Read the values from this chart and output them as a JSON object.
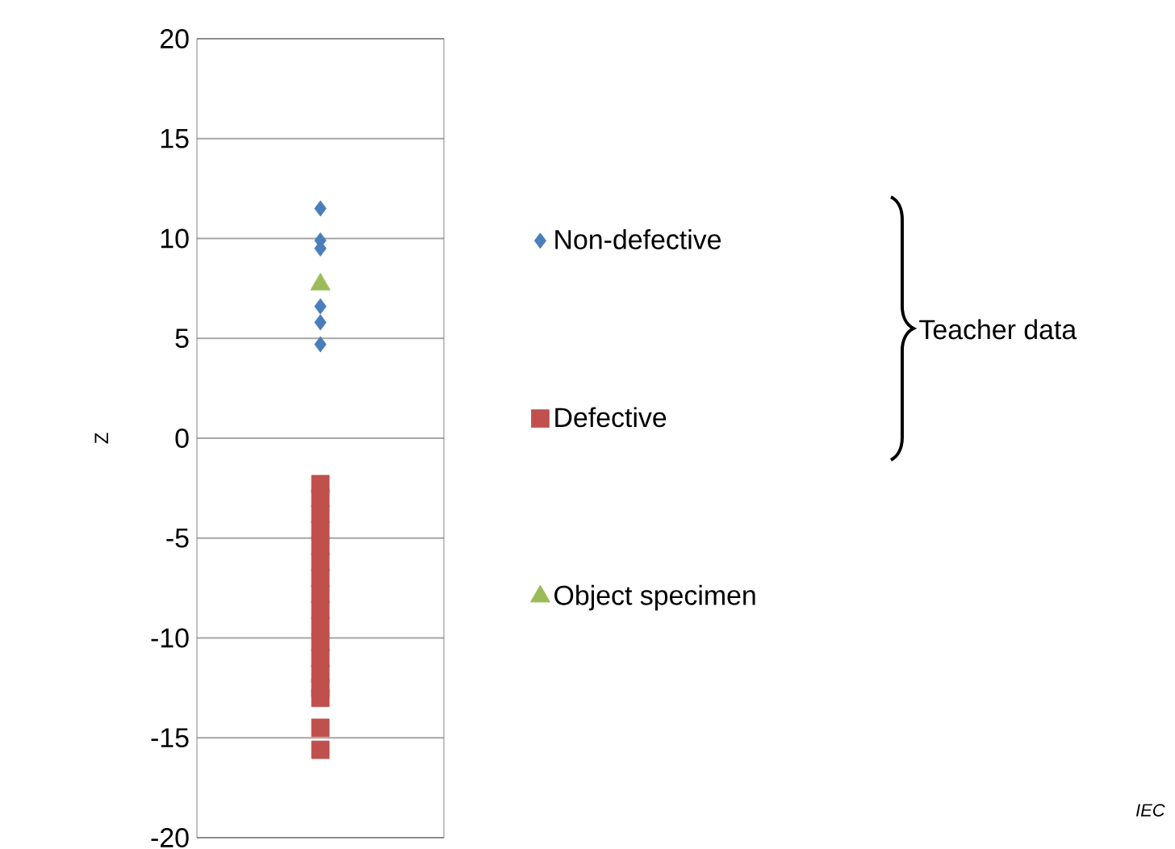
{
  "chart_data": {
    "type": "scatter",
    "ylabel": "Z",
    "categories": [
      null
    ],
    "ylim": [
      -20,
      20
    ],
    "yticks": [
      -20,
      -15,
      -10,
      -5,
      0,
      5,
      10,
      15,
      20
    ],
    "grid": "y",
    "tick_labels": "y",
    "legend": "right",
    "series": [
      {
        "name": "Non-defective",
        "color": "#4a7ebb",
        "marker": "diamond",
        "x": [
          null,
          null,
          null,
          null,
          null,
          null
        ],
        "values": [
          11.5,
          9.9,
          9.5,
          6.6,
          5.8,
          4.7
        ]
      },
      {
        "name": "Defective",
        "color": "#c0504d",
        "marker": "square",
        "x": [
          null,
          null,
          null,
          null,
          null,
          null,
          null,
          null,
          null,
          null,
          null,
          null,
          null,
          null,
          null,
          null,
          null
        ],
        "values": [
          -2.3,
          -3.0,
          -3.8,
          -4.6,
          -5.4,
          -6.2,
          -7.0,
          -7.8,
          -8.6,
          -9.4,
          -10.2,
          -11.0,
          -11.8,
          -12.5,
          -13.0,
          -14.5,
          -15.6
        ]
      },
      {
        "name": "Object specimen",
        "color": "#9bbb59",
        "marker": "triangle",
        "x": [
          null
        ],
        "values": [
          7.7
        ]
      }
    ],
    "annotations": [
      "Teacher data",
      "IEC"
    ]
  }
}
